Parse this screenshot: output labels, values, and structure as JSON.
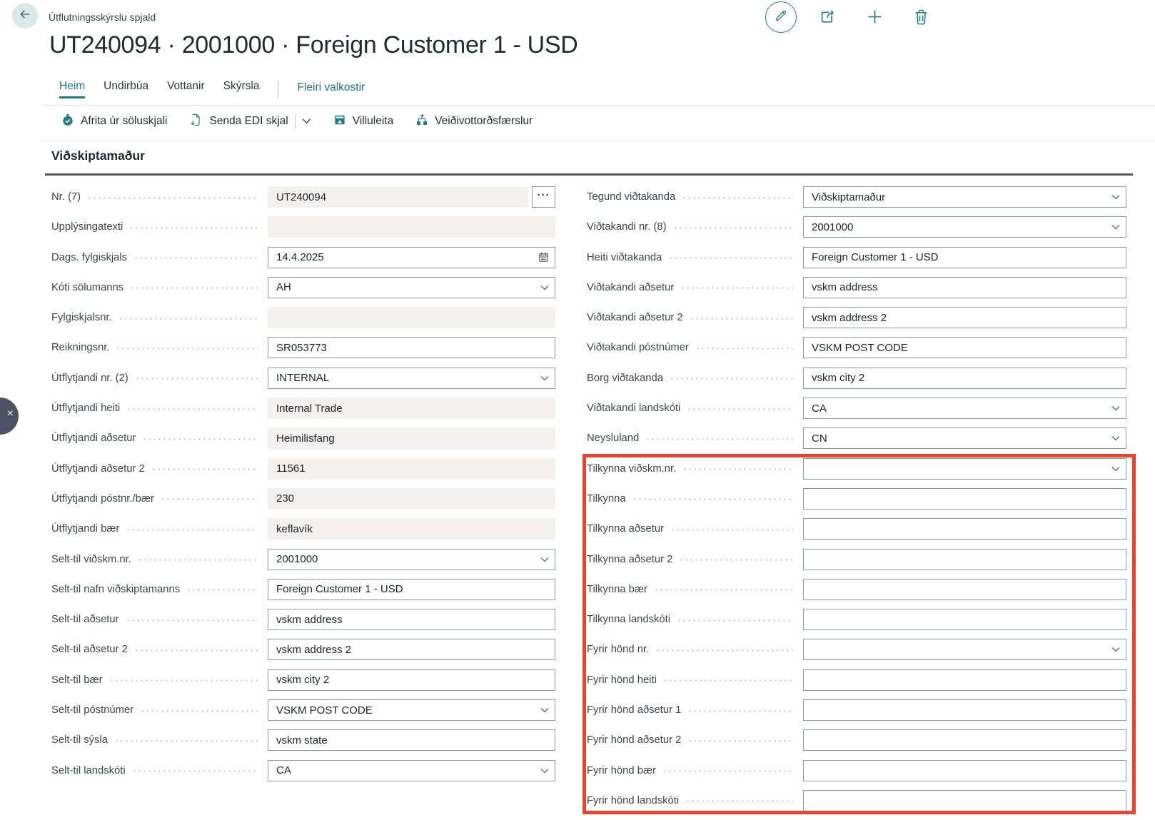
{
  "header": {
    "breadcrumb": "Útflutningsskýrslu spjald",
    "title": "UT240094 · 2001000 · Foreign Customer 1 - USD"
  },
  "menu": {
    "tabs": [
      {
        "label": "Heim",
        "active": true
      },
      {
        "label": "Undirbúa",
        "active": false
      },
      {
        "label": "Vottanir",
        "active": false
      },
      {
        "label": "Skýrsla",
        "active": false
      }
    ],
    "more_label": "Fleiri valkostir",
    "actions": [
      {
        "label": "Afrita úr söluskjali",
        "icon": "copy-sales-doc-icon"
      },
      {
        "label": "Senda EDI skjal",
        "icon": "send-edi-icon",
        "split": true
      },
      {
        "label": "Villuleita",
        "icon": "error-check-icon"
      },
      {
        "label": "Veiðivottorðsfærslur",
        "icon": "catch-certificate-icon"
      }
    ]
  },
  "section": {
    "title": "Viðskiptamaður"
  },
  "fields": {
    "left": [
      {
        "label": "Nr. (7)",
        "value": "UT240094",
        "type": "disabled",
        "assist": true
      },
      {
        "label": "Upplýsingatexti",
        "value": "",
        "type": "disabled"
      },
      {
        "label": "Dags. fylgiskjals",
        "value": "14.4.2025",
        "type": "date"
      },
      {
        "label": "Kóti sölumanns",
        "value": "AH",
        "type": "lookup"
      },
      {
        "label": "Fylgiskjalsnr.",
        "value": "",
        "type": "disabled"
      },
      {
        "label": "Reikningsnr.",
        "value": "SR053773",
        "type": "text"
      },
      {
        "label": "Útflytjandi nr. (2)",
        "value": "INTERNAL",
        "type": "lookup"
      },
      {
        "label": "Útflytjandi heiti",
        "value": "Internal Trade",
        "type": "disabled"
      },
      {
        "label": "Útflytjandi aðsetur",
        "value": "Heimilisfang",
        "type": "disabled"
      },
      {
        "label": "Útflytjandi aðsetur 2",
        "value": "11561",
        "type": "disabled"
      },
      {
        "label": "Útflytjandi póstnr./bær",
        "value": "230",
        "type": "disabled"
      },
      {
        "label": "Útflytjandi bær",
        "value": "keflavík",
        "type": "disabled"
      },
      {
        "label": "Selt-til viðskm.nr.",
        "value": "2001000",
        "type": "lookup"
      },
      {
        "label": "Selt-til nafn viðskiptamanns",
        "value": "Foreign Customer 1 - USD",
        "type": "text"
      },
      {
        "label": "Selt-til aðsetur",
        "value": "vskm address",
        "type": "text"
      },
      {
        "label": "Selt-til aðsetur 2",
        "value": "vskm address 2",
        "type": "text"
      },
      {
        "label": "Selt-til bær",
        "value": "vskm city 2",
        "type": "text"
      },
      {
        "label": "Selt-til póstnúmer",
        "value": "VSKM POST CODE",
        "type": "lookup"
      },
      {
        "label": "Selt-til sýsla",
        "value": "vskm state",
        "type": "text"
      },
      {
        "label": "Selt-til landskóti",
        "value": "CA",
        "type": "lookup"
      }
    ],
    "right": [
      {
        "label": "Tegund viðtakanda",
        "value": "Viðskiptamaður",
        "type": "lookup"
      },
      {
        "label": "Viðtakandi nr. (8)",
        "value": "2001000",
        "type": "lookup"
      },
      {
        "label": "Heiti viðtakanda",
        "value": "Foreign Customer 1 - USD",
        "type": "text"
      },
      {
        "label": "Viðtakandi aðsetur",
        "value": "vskm address",
        "type": "text"
      },
      {
        "label": "Viðtakandi aðsetur 2",
        "value": "vskm address 2",
        "type": "text"
      },
      {
        "label": "Viðtakandi póstnúmer",
        "value": "VSKM POST CODE",
        "type": "text"
      },
      {
        "label": "Borg viðtakanda",
        "value": "vskm city 2",
        "type": "text"
      },
      {
        "label": "Viðtakandi landskóti",
        "value": "CA",
        "type": "lookup"
      },
      {
        "label": "Neysluland",
        "value": "CN",
        "type": "lookup"
      },
      {
        "label": "Tilkynna viðskm.nr.",
        "value": "",
        "type": "lookup"
      },
      {
        "label": "Tilkynna",
        "value": "",
        "type": "text"
      },
      {
        "label": "Tilkynna aðsetur",
        "value": "",
        "type": "text"
      },
      {
        "label": "Tilkynna aðsetur 2",
        "value": "",
        "type": "text"
      },
      {
        "label": "Tilkynna bær",
        "value": "",
        "type": "text"
      },
      {
        "label": "Tilkynna landskóti",
        "value": "",
        "type": "text"
      },
      {
        "label": "Fyrir hönd nr.",
        "value": "",
        "type": "lookup"
      },
      {
        "label": "Fyrir hönd heiti",
        "value": "",
        "type": "text"
      },
      {
        "label": "Fyrir hönd aðsetur 1",
        "value": "",
        "type": "text"
      },
      {
        "label": "Fyrir hönd aðsetur 2",
        "value": "",
        "type": "text"
      },
      {
        "label": "Fyrir hönd bær",
        "value": "",
        "type": "text"
      },
      {
        "label": "Fyrir hönd landskóti",
        "value": "",
        "type": "text"
      }
    ]
  },
  "glyphs": {
    "assist": "···",
    "pull_tab_close": "×"
  },
  "colors": {
    "accent_teal": "#217c88",
    "active_tab": "#1b7a85",
    "highlight_red": "#e8432d",
    "section_rule": "#4e5a66",
    "disabled_fill": "#f2f1f0",
    "field_border": "#8e959b"
  },
  "icon_names": [
    "back-arrow-icon",
    "edit-pencil-icon",
    "share-icon",
    "add-icon",
    "delete-icon",
    "copy-sales-doc-icon",
    "send-edi-icon",
    "error-check-icon",
    "catch-certificate-icon",
    "calendar-icon",
    "chevron-down-icon",
    "assist-edit-icon",
    "close-icon"
  ]
}
